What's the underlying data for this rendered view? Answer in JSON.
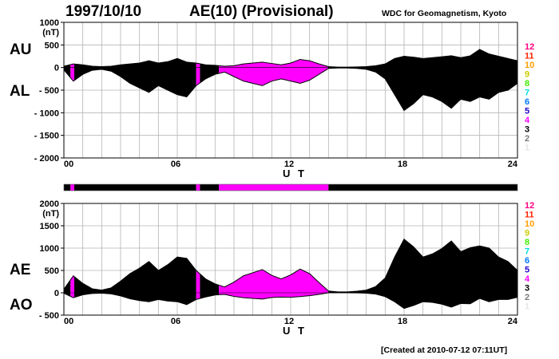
{
  "header": {
    "date": "1997/10/10",
    "title": "AE(10) (Provisional)",
    "institution": "WDC for Geomagnetism, Kyoto"
  },
  "footer": {
    "created": "[Created at 2010-07-12 07:11UT]"
  },
  "colors": {
    "fill_active": "#ff9e00",
    "fill_low": "#ffff00",
    "outline": "#000000",
    "grid": "#b4b4b4",
    "activity_scale": [
      "#e6e6e6",
      "#7a7a7a",
      "#000000",
      "#ff00ff",
      "#2200cc",
      "#0077ff",
      "#00dddd",
      "#44ee00",
      "#cccc00",
      "#ff9e00",
      "#ff2200",
      "#ff007f"
    ]
  },
  "activity_levels": [
    "12",
    "11",
    "10",
    "9",
    "8",
    "7",
    "6",
    "5",
    "4",
    "3",
    "2",
    "1"
  ],
  "activity_strip": [
    {
      "from": 0.0,
      "to": 0.35,
      "level": 10
    },
    {
      "from": 0.35,
      "to": 0.55,
      "level": 9
    },
    {
      "from": 0.55,
      "to": 7.0,
      "level": 10
    },
    {
      "from": 7.0,
      "to": 7.2,
      "level": 9
    },
    {
      "from": 7.2,
      "to": 8.2,
      "level": 10
    },
    {
      "from": 8.2,
      "to": 14.0,
      "level": 9
    },
    {
      "from": 14.0,
      "to": 24.0,
      "level": 10
    }
  ],
  "chart_data": [
    {
      "type": "area",
      "series": [
        {
          "name": "AU",
          "x": [
            0,
            0.5,
            1,
            1.5,
            2,
            2.5,
            3,
            3.5,
            4,
            4.5,
            5,
            5.5,
            6,
            6.5,
            7,
            7.5,
            8,
            8.5,
            9,
            9.5,
            10,
            10.5,
            11,
            11.5,
            12,
            12.5,
            13,
            13.5,
            14,
            14.5,
            15,
            15.5,
            16,
            16.5,
            17,
            17.5,
            18,
            18.5,
            19,
            19.5,
            20,
            20.5,
            21,
            21.5,
            22,
            22.5,
            23,
            23.5,
            24
          ],
          "values": [
            30,
            80,
            60,
            30,
            20,
            30,
            60,
            80,
            100,
            150,
            100,
            130,
            200,
            120,
            100,
            60,
            50,
            30,
            40,
            80,
            100,
            120,
            90,
            60,
            100,
            180,
            150,
            80,
            20,
            10,
            10,
            15,
            20,
            40,
            80,
            200,
            250,
            230,
            200,
            220,
            240,
            260,
            220,
            260,
            400,
            300,
            250,
            200,
            150
          ]
        },
        {
          "name": "AL",
          "x": [
            0,
            0.5,
            1,
            1.5,
            2,
            2.5,
            3,
            3.5,
            4,
            4.5,
            5,
            5.5,
            6,
            6.5,
            7,
            7.5,
            8,
            8.5,
            9,
            9.5,
            10,
            10.5,
            11,
            11.5,
            12,
            12.5,
            13,
            13.5,
            14,
            14.5,
            15,
            15.5,
            16,
            16.5,
            17,
            17.5,
            18,
            18.5,
            19,
            19.5,
            20,
            20.5,
            21,
            21.5,
            22,
            22.5,
            23,
            23.5,
            24
          ],
          "values": [
            -50,
            -300,
            -150,
            -60,
            -40,
            -80,
            -200,
            -350,
            -450,
            -550,
            -400,
            -500,
            -600,
            -650,
            -400,
            -250,
            -150,
            -100,
            -200,
            -300,
            -350,
            -400,
            -300,
            -250,
            -300,
            -350,
            -280,
            -150,
            -20,
            -10,
            -10,
            -20,
            -40,
            -100,
            -250,
            -600,
            -950,
            -800,
            -600,
            -650,
            -750,
            -900,
            -700,
            -750,
            -650,
            -700,
            -550,
            -500,
            -350
          ]
        }
      ],
      "ylabel": "(nT)",
      "xlabel": "U T",
      "series_labels": [
        "AU",
        "AL"
      ],
      "xlim": [
        0,
        24
      ],
      "ylim": [
        -2000,
        1000
      ],
      "xticks": [
        "00",
        "06",
        "12",
        "18",
        "24"
      ],
      "yticks": [
        "1000",
        "500",
        "0",
        "- 500",
        "- 1000",
        "- 1500",
        "- 2000"
      ],
      "grid": true
    },
    {
      "type": "area",
      "series": [
        {
          "name": "AE",
          "x": [
            0,
            0.5,
            1,
            1.5,
            2,
            2.5,
            3,
            3.5,
            4,
            4.5,
            5,
            5.5,
            6,
            6.5,
            7,
            7.5,
            8,
            8.5,
            9,
            9.5,
            10,
            10.5,
            11,
            11.5,
            12,
            12.5,
            13,
            13.5,
            14,
            14.5,
            15,
            15.5,
            16,
            16.5,
            17,
            17.5,
            18,
            18.5,
            19,
            19.5,
            20,
            20.5,
            21,
            21.5,
            22,
            22.5,
            23,
            23.5,
            24
          ],
          "values": [
            80,
            380,
            210,
            90,
            60,
            110,
            260,
            430,
            550,
            700,
            500,
            630,
            800,
            770,
            500,
            310,
            200,
            130,
            240,
            380,
            450,
            520,
            390,
            310,
            400,
            530,
            430,
            230,
            40,
            20,
            20,
            35,
            60,
            140,
            330,
            800,
            1200,
            1030,
            800,
            870,
            990,
            1160,
            920,
            1010,
            1050,
            1000,
            800,
            700,
            500
          ]
        },
        {
          "name": "AO",
          "x": [
            0,
            0.5,
            1,
            1.5,
            2,
            2.5,
            3,
            3.5,
            4,
            4.5,
            5,
            5.5,
            6,
            6.5,
            7,
            7.5,
            8,
            8.5,
            9,
            9.5,
            10,
            10.5,
            11,
            11.5,
            12,
            12.5,
            13,
            13.5,
            14,
            14.5,
            15,
            15.5,
            16,
            16.5,
            17,
            17.5,
            18,
            18.5,
            19,
            19.5,
            20,
            20.5,
            21,
            21.5,
            22,
            22.5,
            23,
            23.5,
            24
          ],
          "values": [
            -10,
            -110,
            -45,
            -15,
            -10,
            -25,
            -70,
            -135,
            -175,
            -200,
            -150,
            -185,
            -200,
            -265,
            -150,
            -95,
            -50,
            -35,
            -80,
            -110,
            -125,
            -140,
            -105,
            -95,
            -100,
            -85,
            -65,
            -35,
            0,
            0,
            0,
            -2,
            -10,
            -30,
            -85,
            -200,
            -350,
            -285,
            -200,
            -215,
            -255,
            -320,
            -240,
            -245,
            -125,
            -200,
            -150,
            -150,
            -100
          ]
        }
      ],
      "ylabel": "(nT)",
      "xlabel": "U T",
      "series_labels": [
        "AE",
        "AO"
      ],
      "xlim": [
        0,
        24
      ],
      "ylim": [
        -500,
        2000
      ],
      "xticks": [
        "00",
        "06",
        "12",
        "18",
        "24"
      ],
      "yticks": [
        "2000",
        "1500",
        "1000",
        "500",
        "0",
        "- 500"
      ],
      "grid": true
    }
  ]
}
